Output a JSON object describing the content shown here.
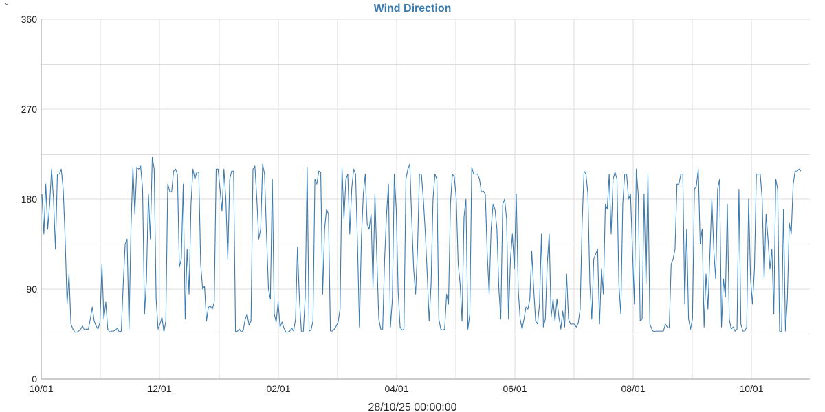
{
  "chart_data": {
    "type": "line",
    "title": "Wind Direction",
    "unit": "°",
    "xlabel": "28/10/25 00:00:00",
    "ylim": [
      0,
      360
    ],
    "y_ticks": [
      0,
      90,
      180,
      270,
      360
    ],
    "y_gridlines": [
      45,
      90,
      135,
      180,
      225,
      270,
      315,
      360
    ],
    "x_tick_labels": [
      "10/01",
      "12/01",
      "02/01",
      "04/01",
      "06/01",
      "08/01",
      "10/01"
    ],
    "grid": true,
    "colors": {
      "line": "#3a7bb0",
      "title": "#3a7bb0",
      "grid": "#dddddd"
    },
    "series": [
      {
        "values": [
          185,
          145,
          195,
          150,
          175,
          210,
          180,
          130,
          205,
          205,
          210,
          190,
          140,
          75,
          105,
          55,
          50,
          47,
          47,
          48,
          50,
          53,
          49,
          50,
          50,
          60,
          72,
          58,
          53,
          50,
          57,
          115,
          60,
          77,
          50,
          47,
          48,
          48,
          49,
          51,
          47,
          48,
          95,
          135,
          140,
          50,
          150,
          212,
          165,
          212,
          210,
          213,
          190,
          65,
          100,
          185,
          140,
          222,
          210,
          80,
          50,
          55,
          62,
          47,
          58,
          195,
          188,
          187,
          208,
          210,
          205,
          112,
          120,
          195,
          60,
          130,
          85,
          175,
          210,
          200,
          207,
          207,
          115,
          90,
          93,
          58,
          72,
          73,
          70,
          77,
          210,
          210,
          190,
          168,
          210,
          180,
          120,
          200,
          208,
          208,
          47,
          48,
          50,
          47,
          49,
          60,
          65,
          54,
          58,
          210,
          213,
          180,
          140,
          150,
          215,
          205,
          145,
          90,
          80,
          200,
          65,
          57,
          77,
          52,
          57,
          51,
          47,
          47,
          48,
          51,
          48,
          60,
          132,
          80,
          48,
          47,
          82,
          212,
          48,
          49,
          58,
          200,
          195,
          208,
          207,
          85,
          150,
          170,
          165,
          48,
          48,
          50,
          53,
          57,
          70,
          212,
          160,
          200,
          205,
          145,
          190,
          210,
          205,
          135,
          52,
          140,
          185,
          205,
          155,
          150,
          165,
          92,
          185,
          120,
          60,
          50,
          50,
          120,
          165,
          195,
          52,
          80,
          205,
          170,
          88,
          52,
          49,
          50,
          200,
          210,
          215,
          160,
          110,
          85,
          130,
          205,
          205,
          180,
          147,
          105,
          58,
          95,
          180,
          205,
          200,
          60,
          50,
          49,
          50,
          85,
          75,
          175,
          205,
          202,
          180,
          115,
          95,
          58,
          162,
          180,
          50,
          65,
          212,
          205,
          205,
          205,
          200,
          187,
          188,
          185,
          125,
          85,
          150,
          175,
          170,
          150,
          90,
          60,
          175,
          180,
          160,
          60,
          120,
          145,
          110,
          185,
          90,
          60,
          50,
          60,
          72,
          70,
          80,
          128,
          90,
          58,
          55,
          75,
          145,
          52,
          60,
          115,
          145,
          62,
          80,
          58,
          80,
          62,
          50,
          68,
          52,
          105,
          60,
          55,
          55,
          55,
          52,
          56,
          70,
          155,
          208,
          205,
          185,
          95,
          60,
          120,
          125,
          130,
          55,
          110,
          85,
          175,
          170,
          205,
          145,
          200,
          207,
          200,
          95,
          65,
          175,
          205,
          205,
          180,
          185,
          130,
          75,
          210,
          185,
          58,
          60,
          185,
          95,
          205,
          55,
          50,
          47,
          48,
          48,
          48,
          48,
          48,
          55,
          52,
          51,
          115,
          120,
          130,
          195,
          195,
          205,
          205,
          75,
          150,
          60,
          50,
          60,
          190,
          193,
          210,
          135,
          150,
          52,
          105,
          70,
          125,
          180,
          130,
          100,
          190,
          200,
          52,
          100,
          82,
          175,
          60,
          50,
          52,
          48,
          50,
          190,
          55,
          48,
          48,
          52,
          180,
          100,
          75,
          110,
          205,
          205,
          205,
          180,
          100,
          165,
          140,
          110,
          130,
          65,
          200,
          190,
          48,
          47,
          170,
          48,
          80,
          156,
          145,
          195,
          208,
          208,
          210,
          208
        ]
      }
    ]
  }
}
